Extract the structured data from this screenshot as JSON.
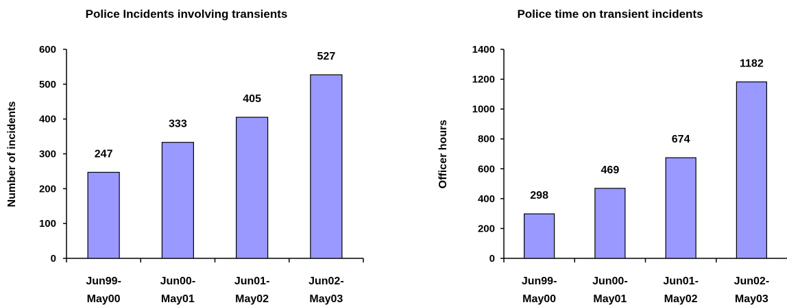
{
  "chart_data": [
    {
      "type": "bar",
      "title": "Police Incidents involving transients",
      "xlabel": "",
      "ylabel": "Number of incidents",
      "categories": [
        [
          "Jun99-",
          "May00"
        ],
        [
          "Jun00-",
          "May01"
        ],
        [
          "Jun01-",
          "May02"
        ],
        [
          "Jun02-",
          "May03"
        ]
      ],
      "values": [
        247,
        333,
        405,
        527
      ],
      "ylim": [
        0,
        600
      ],
      "yticks": [
        0,
        100,
        200,
        300,
        400,
        500,
        600
      ],
      "bar_color": "#9999ff",
      "grid": false,
      "legend": "none"
    },
    {
      "type": "bar",
      "title": "Police time on transient incidents",
      "xlabel": "",
      "ylabel": "Officer hours",
      "categories": [
        [
          "Jun99-",
          "May00"
        ],
        [
          "Jun00-",
          "May01"
        ],
        [
          "Jun01-",
          "May02"
        ],
        [
          "Jun02-",
          "May03"
        ]
      ],
      "values": [
        298,
        469,
        674,
        1182
      ],
      "ylim": [
        0,
        1400
      ],
      "yticks": [
        0,
        200,
        400,
        600,
        800,
        1000,
        1200,
        1400
      ],
      "bar_color": "#9999ff",
      "grid": false,
      "legend": "none"
    }
  ]
}
